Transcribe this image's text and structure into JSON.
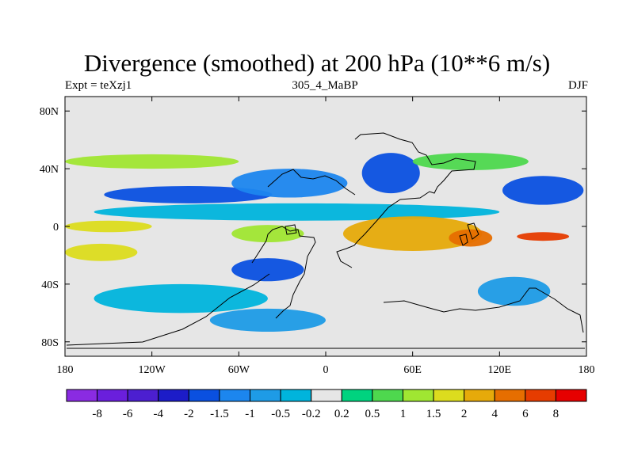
{
  "chart_data": {
    "type": "heatmap",
    "title": "Divergence (smoothed) at 200 hPa (10**6 m/s)",
    "subtitle_left": "Expt = teXzj1",
    "subtitle_center": "305_4_MaBP",
    "subtitle_right": "DJF",
    "x_range": [
      -180,
      180
    ],
    "y_range": [
      -90,
      90
    ],
    "x_ticks": [
      {
        "value": -180,
        "label": "180"
      },
      {
        "value": -120,
        "label": "120W"
      },
      {
        "value": -60,
        "label": "60W"
      },
      {
        "value": 0,
        "label": "0"
      },
      {
        "value": 60,
        "label": "60E"
      },
      {
        "value": 120,
        "label": "120E"
      },
      {
        "value": 180,
        "label": "180"
      }
    ],
    "y_ticks": [
      {
        "value": 80,
        "label": "80N"
      },
      {
        "value": 40,
        "label": "40N"
      },
      {
        "value": 0,
        "label": "0"
      },
      {
        "value": -40,
        "label": "40S"
      },
      {
        "value": -80,
        "label": "80S"
      }
    ],
    "levels": [
      "-8",
      "-6",
      "-4",
      "-2",
      "-1.5",
      "-1",
      "-0.5",
      "-0.2",
      "0.2",
      "0.5",
      "1",
      "1.5",
      "2",
      "4",
      "6",
      "8"
    ],
    "colors": [
      "#8a2be2",
      "#6a1fdc",
      "#4c1fd0",
      "#1c1cc8",
      "#0a50e0",
      "#1c86ee",
      "#1e9be6",
      "#00b4dc",
      "#e6e6e6",
      "#00d37f",
      "#4ed84e",
      "#a0e632",
      "#dcdc1e",
      "#e6aa0a",
      "#e66e00",
      "#e63c00",
      "#e60000"
    ],
    "fields": [
      {
        "name": "north-subtropical-jet-convergence",
        "lon": -95,
        "lat": 22,
        "half_lon": 58,
        "half_lat": 6,
        "value": -2
      },
      {
        "name": "north-atlantic-convergence",
        "lon": -25,
        "lat": 30,
        "half_lon": 40,
        "half_lat": 10,
        "value": -1.5
      },
      {
        "name": "asia-convergence-core",
        "lon": 45,
        "lat": 37,
        "half_lon": 20,
        "half_lat": 14,
        "value": -2
      },
      {
        "name": "west-pacific-convergence",
        "lon": 150,
        "lat": 25,
        "half_lon": 28,
        "half_lat": 10,
        "value": -2
      },
      {
        "name": "equatorial-convergence-band",
        "lon": -20,
        "lat": 10,
        "half_lon": 140,
        "half_lat": 6,
        "value": -0.5
      },
      {
        "name": "north-midlatitude-divergence",
        "lon": -120,
        "lat": 45,
        "half_lon": 60,
        "half_lat": 5,
        "value": 1
      },
      {
        "name": "asia-north-divergence",
        "lon": 100,
        "lat": 45,
        "half_lon": 40,
        "half_lat": 6,
        "value": 0.5
      },
      {
        "name": "pacific-equatorial-divergence",
        "lon": -150,
        "lat": 0,
        "half_lon": 30,
        "half_lat": 4,
        "value": 1.5
      },
      {
        "name": "indian-ocean-divergence",
        "lon": 60,
        "lat": -5,
        "half_lon": 48,
        "half_lat": 12,
        "value": 2
      },
      {
        "name": "south-indian-ocean-divergence-core",
        "lon": 100,
        "lat": -8,
        "half_lon": 15,
        "half_lat": 6,
        "value": 4
      },
      {
        "name": "west-pacific-strong-divergence",
        "lon": 150,
        "lat": -7,
        "half_lon": 18,
        "half_lat": 3,
        "value": 6
      },
      {
        "name": "south-pacific-divergence",
        "lon": -155,
        "lat": -18,
        "half_lon": 25,
        "half_lat": 6,
        "value": 1.5
      },
      {
        "name": "south-america-divergence",
        "lon": -40,
        "lat": -5,
        "half_lon": 25,
        "half_lat": 6,
        "value": 1
      },
      {
        "name": "south-atlantic-convergence",
        "lon": -40,
        "lat": -30,
        "half_lon": 25,
        "half_lat": 8,
        "value": -2
      },
      {
        "name": "southern-ocean-convergence",
        "lon": -100,
        "lat": -50,
        "half_lon": 60,
        "half_lat": 10,
        "value": -0.5
      },
      {
        "name": "australia-convergence",
        "lon": 130,
        "lat": -45,
        "half_lon": 25,
        "half_lat": 10,
        "value": -1
      },
      {
        "name": "antarctic-edge-convergence",
        "lon": -40,
        "lat": -65,
        "half_lon": 40,
        "half_lat": 8,
        "value": -1
      }
    ]
  }
}
